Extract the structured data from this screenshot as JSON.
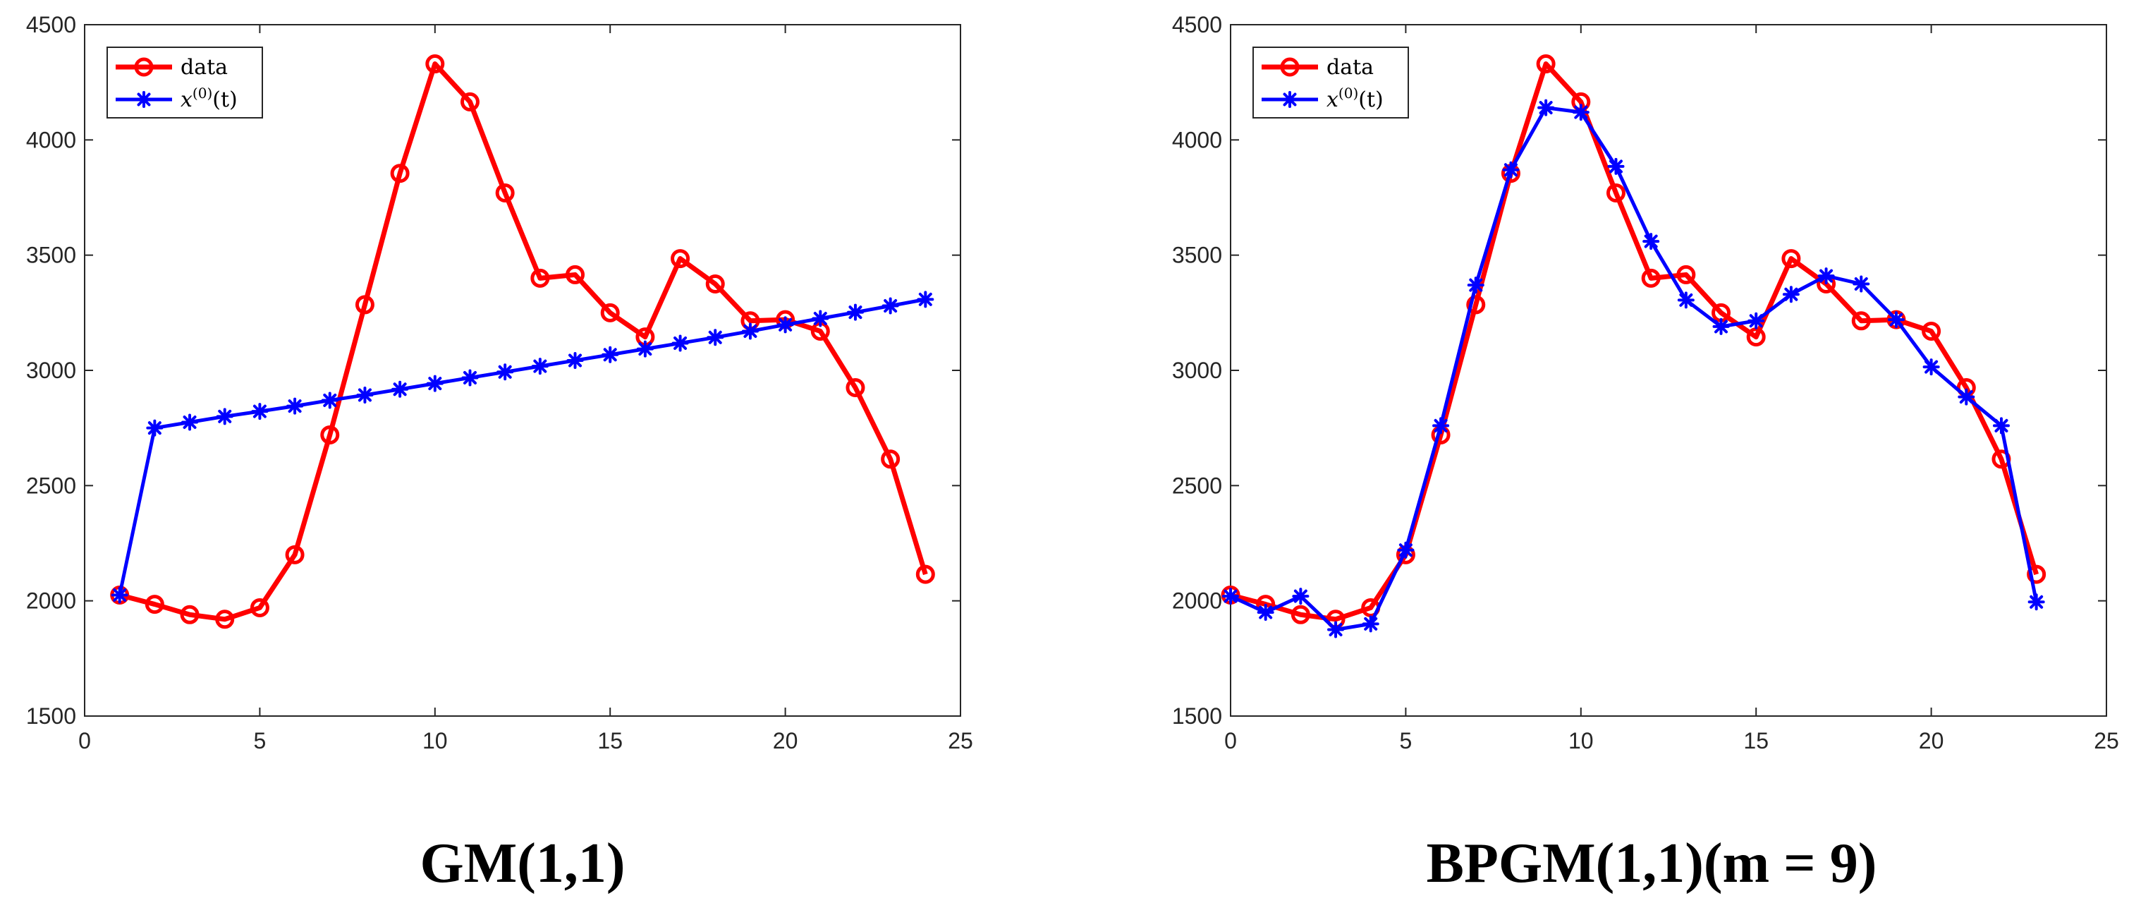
{
  "chart_data": [
    {
      "type": "line",
      "caption": "GM(1,1)",
      "xlim": [
        0,
        25
      ],
      "ylim": [
        1500,
        4500
      ],
      "xticks": [
        0,
        5,
        10,
        15,
        20,
        25
      ],
      "yticks": [
        1500,
        2000,
        2500,
        3000,
        3500,
        4000,
        4500
      ],
      "legend_position": "top-left",
      "series": [
        {
          "name": "data",
          "color": "#ff0000",
          "marker": "circle",
          "x": [
            1,
            2,
            3,
            4,
            5,
            6,
            7,
            8,
            9,
            10,
            11,
            12,
            13,
            14,
            15,
            16,
            17,
            18,
            19,
            20,
            21,
            22,
            23,
            24
          ],
          "y": [
            2025,
            1985,
            1940,
            1920,
            1970,
            2200,
            2720,
            3285,
            3855,
            4330,
            4165,
            3770,
            3400,
            3415,
            3250,
            3145,
            3485,
            3375,
            3215,
            3220,
            3170,
            2925,
            2615,
            2115
          ]
        },
        {
          "name": "x(0)(t)",
          "color": "#0000ff",
          "marker": "asterisk",
          "x": [
            1,
            2,
            3,
            4,
            5,
            6,
            7,
            8,
            9,
            10,
            11,
            12,
            13,
            14,
            15,
            16,
            17,
            18,
            19,
            20,
            21,
            22,
            23,
            24
          ],
          "y": [
            2025,
            2750,
            2775,
            2800,
            2822,
            2845,
            2870,
            2893,
            2918,
            2943,
            2968,
            2993,
            3018,
            3043,
            3068,
            3093,
            3118,
            3143,
            3170,
            3198,
            3225,
            3252,
            3280,
            3308
          ]
        }
      ]
    },
    {
      "type": "line",
      "caption": "BPGM(1,1)(m = 9)",
      "xlim": [
        0,
        25
      ],
      "ylim": [
        1500,
        4500
      ],
      "xticks": [
        0,
        5,
        10,
        15,
        20,
        25
      ],
      "yticks": [
        1500,
        2000,
        2500,
        3000,
        3500,
        4000,
        4500
      ],
      "legend_position": "top-left",
      "series": [
        {
          "name": "data",
          "color": "#ff0000",
          "marker": "circle",
          "x": [
            0,
            1,
            2,
            3,
            4,
            5,
            6,
            7,
            8,
            9,
            10,
            11,
            12,
            13,
            14,
            15,
            16,
            17,
            18,
            19,
            20,
            21,
            22,
            23
          ],
          "y": [
            2025,
            1985,
            1940,
            1920,
            1970,
            2200,
            2720,
            3285,
            3855,
            4330,
            4165,
            3770,
            3400,
            3415,
            3250,
            3145,
            3485,
            3375,
            3215,
            3220,
            3170,
            2925,
            2615,
            2115
          ]
        },
        {
          "name": "x(0)(t)",
          "color": "#0000ff",
          "marker": "asterisk",
          "x": [
            0,
            1,
            2,
            3,
            4,
            5,
            6,
            7,
            8,
            9,
            10,
            11,
            12,
            13,
            14,
            15,
            16,
            17,
            18,
            19,
            20,
            21,
            22,
            23
          ],
          "y": [
            2020,
            1950,
            2020,
            1875,
            1900,
            2220,
            2760,
            3370,
            3870,
            4140,
            4120,
            3885,
            3560,
            3305,
            3190,
            3215,
            3330,
            3410,
            3375,
            3220,
            3015,
            2885,
            2760,
            1995
          ]
        }
      ]
    }
  ]
}
